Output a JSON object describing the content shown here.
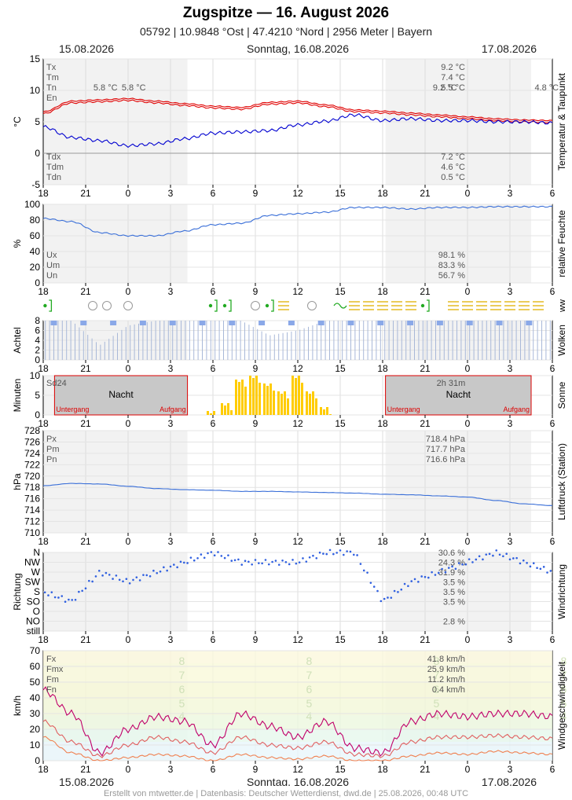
{
  "header": {
    "title": "Zugspitze  —  16. August 2026",
    "subtitle": "05792  |  10.9848 °Ost  |  47.4210 °Nord  |  2956 Meter  |  Bayern",
    "date_left": "15.08.2026",
    "date_center": "Sonntag, 16.08.2026",
    "date_right": "17.08.2026"
  },
  "footer": "Erstellt von mtwetter.de | Datenbasis: Deutscher Wetterdienst, dwd.de | 25.08.2026, 00:48 UTC",
  "colors": {
    "temp": "#e00000",
    "dew": "#0000d0",
    "hum": "#3a6fd8",
    "sun": "#ffcc00",
    "cloud": "#8aa8e8",
    "gust": "#c0006a",
    "wind": "#e06060",
    "precip": "#22aa22"
  },
  "x_ticks": [
    "18",
    "21",
    "0",
    "3",
    "6",
    "9",
    "12",
    "15",
    "18",
    "21",
    "0",
    "3",
    "6"
  ],
  "chart_data": [
    {
      "type": "line",
      "name": "temperature",
      "side_label": "Temperatur & Taupunkt",
      "ylabel": "°C",
      "ylim": [
        -5,
        15
      ],
      "yticks": [
        "15",
        "10",
        "5",
        "0",
        "-5"
      ],
      "x_hours": [
        -6,
        -4,
        -2,
        0,
        2,
        4,
        6,
        8,
        10,
        12,
        14,
        16,
        18,
        20,
        22,
        24,
        26,
        28,
        30
      ],
      "series": [
        {
          "name": "T",
          "values": [
            6.3,
            8.0,
            8.2,
            8.4,
            8.0,
            7.6,
            7.2,
            7.0,
            7.8,
            8.0,
            7.4,
            6.6,
            6.4,
            6.1,
            5.8,
            5.5,
            5.2,
            5.0,
            4.9
          ]
        },
        {
          "name": "Td",
          "values": [
            4.2,
            2.5,
            2.0,
            1.2,
            1.5,
            2.3,
            3.2,
            3.4,
            3.6,
            4.5,
            5.1,
            6.1,
            5.2,
            5.5,
            5.2,
            5.2,
            5.0,
            5.0,
            4.8
          ]
        }
      ],
      "stats_top": [
        {
          "label": "Tx",
          "value": "9.2 °C"
        },
        {
          "label": "Tm",
          "value": "7.4 °C"
        },
        {
          "label": "Tn",
          "value": "5.5 °C"
        },
        {
          "label": "En",
          "value": ""
        }
      ],
      "stats_bottom": [
        {
          "label": "Tdx",
          "value": "7.2 °C"
        },
        {
          "label": "Tdm",
          "value": "4.6 °C"
        },
        {
          "label": "Tdn",
          "value": "0.5 °C"
        }
      ],
      "annotations": [
        {
          "x": -1.6,
          "text": "5.8 °C"
        },
        {
          "x": 0.4,
          "text": "5.8 °C"
        },
        {
          "x": 22.4,
          "text": "9.2 °C"
        },
        {
          "x": 29.6,
          "text": "4.8 °C"
        }
      ]
    },
    {
      "type": "line",
      "name": "humidity",
      "side_label": "relative Feuchte",
      "ylabel": "%",
      "ylim": [
        0,
        100
      ],
      "yticks": [
        "100",
        "80",
        "60",
        "40",
        "20",
        "0"
      ],
      "x_hours": [
        -6,
        -4,
        -2,
        0,
        2,
        4,
        6,
        8,
        10,
        12,
        14,
        16,
        18,
        20,
        22,
        24,
        26,
        28,
        30
      ],
      "series": [
        {
          "name": "U",
          "values": [
            82,
            78,
            64,
            60,
            60,
            66,
            74,
            76,
            86,
            88,
            90,
            96,
            96,
            94,
            96,
            96,
            97,
            97,
            97
          ]
        }
      ],
      "stats_top": [],
      "stats_bottom": [
        {
          "label": "Ux",
          "value": "98.1 %"
        },
        {
          "label": "Um",
          "value": "83.3 %"
        },
        {
          "label": "Un",
          "value": "56.7 %"
        }
      ]
    },
    {
      "type": "bar",
      "name": "clouds",
      "side_label": "Wolken",
      "ylabel": "Achtel",
      "ylim": [
        0,
        8
      ],
      "yticks": [
        "8",
        "6",
        "4",
        "2",
        "0"
      ],
      "x_hours": [
        -6,
        -4,
        -2,
        0,
        2,
        4,
        6,
        8,
        10,
        12,
        14,
        16,
        18,
        20,
        22,
        24,
        26,
        28,
        30
      ],
      "values": [
        8,
        8,
        3,
        7,
        8,
        8,
        8,
        8,
        5,
        6,
        8,
        8,
        8,
        8,
        8,
        8,
        8,
        8,
        8
      ]
    },
    {
      "type": "bar",
      "name": "sunshine",
      "side_label": "Sonne",
      "ylabel": "Minuten",
      "ylim": [
        0,
        10
      ],
      "yticks": [
        "10",
        "5",
        "0"
      ],
      "x_hours": [
        6,
        7,
        8,
        9,
        10,
        11,
        12,
        13,
        14
      ],
      "values": [
        1,
        3,
        9,
        10,
        8,
        6,
        10,
        6,
        2
      ],
      "labels": {
        "sd_left": "Sd24",
        "sd_right": "2h 31m",
        "night": "Nacht",
        "sunset": "Untergang",
        "sunrise": "Aufgang"
      }
    },
    {
      "type": "line",
      "name": "pressure",
      "side_label": "Luftdruck (Station)",
      "ylabel": "hPa",
      "ylim": [
        710,
        728
      ],
      "yticks": [
        "728",
        "726",
        "724",
        "722",
        "720",
        "718",
        "716",
        "714",
        "712",
        "710"
      ],
      "x_hours": [
        -6,
        -4,
        -2,
        0,
        2,
        4,
        6,
        8,
        10,
        12,
        14,
        16,
        18,
        20,
        22,
        24,
        26,
        28,
        30
      ],
      "series": [
        {
          "name": "P",
          "values": [
            718.3,
            718.7,
            718.6,
            718.2,
            717.8,
            717.6,
            717.5,
            717.3,
            717.3,
            717.2,
            717.1,
            717.0,
            716.8,
            716.7,
            716.5,
            716.3,
            715.7,
            715.1,
            714.8
          ]
        }
      ],
      "stats_top": [
        {
          "label": "Px",
          "value": "718.4 hPa"
        },
        {
          "label": "Pm",
          "value": "717.7 hPa"
        },
        {
          "label": "Pn",
          "value": "716.6 hPa"
        }
      ],
      "stats_bottom": []
    },
    {
      "type": "scatter",
      "name": "wind_direction",
      "side_label": "Windrichtung",
      "ylabel": "Richtung",
      "categories": [
        "N",
        "NW",
        "W",
        "SW",
        "S",
        "SO",
        "O",
        "NO",
        "still"
      ],
      "percentages": [
        "30.6 %",
        "24.3 %",
        "31.9 %",
        "3.5 %",
        "3.5 %",
        "3.5 %",
        "",
        "2.8 %",
        ""
      ],
      "x_hours": [
        -6,
        -4,
        -2,
        0,
        2,
        4,
        6,
        8,
        10,
        12,
        14,
        16,
        18,
        20,
        22,
        24,
        26,
        28,
        30
      ],
      "values": [
        "S",
        "SO",
        "W",
        "SW",
        "W",
        "NW",
        "N",
        "NW",
        "NW",
        "NW",
        "N",
        "N",
        "SO",
        "SW",
        "W",
        "NW",
        "N",
        "NW",
        "W"
      ]
    },
    {
      "type": "line",
      "name": "wind_speed",
      "side_label": "Windgeschwindigkeit",
      "ylabel": "km/h",
      "ylim": [
        0,
        70
      ],
      "yticks": [
        "70",
        "60",
        "50",
        "40",
        "30",
        "20",
        "10",
        "0"
      ],
      "beaufort_labels": [
        "8",
        "7",
        "6",
        "5",
        "4"
      ],
      "x_hours": [
        -6,
        -4,
        -2,
        0,
        2,
        4,
        6,
        8,
        10,
        12,
        14,
        16,
        18,
        20,
        22,
        24,
        26,
        28,
        30
      ],
      "series": [
        {
          "name": "Fx",
          "values": [
            45,
            30,
            5,
            20,
            28,
            25,
            10,
            30,
            22,
            15,
            25,
            8,
            5,
            25,
            30,
            28,
            30,
            30,
            28
          ]
        },
        {
          "name": "Fm",
          "values": [
            25,
            12,
            3,
            10,
            15,
            12,
            5,
            15,
            10,
            8,
            12,
            4,
            3,
            12,
            15,
            15,
            16,
            15,
            14
          ]
        },
        {
          "name": "Fn",
          "values": [
            15,
            5,
            0,
            2,
            4,
            3,
            0,
            4,
            2,
            1,
            3,
            0,
            0,
            3,
            5,
            4,
            6,
            5,
            4
          ]
        }
      ],
      "stats_top": [
        {
          "label": "Fx",
          "value": "41.8 km/h"
        },
        {
          "label": "Fmx",
          "value": "25.9 km/h"
        },
        {
          "label": "Fm",
          "value": "11.2 km/h"
        },
        {
          "label": "Fn",
          "value": "0.4 km/h"
        }
      ],
      "stats_bottom": []
    }
  ]
}
